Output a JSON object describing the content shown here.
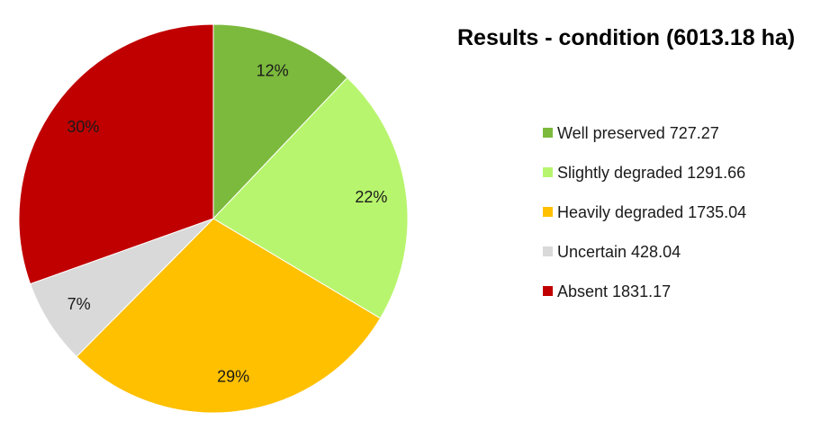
{
  "chart_data": {
    "type": "pie",
    "title": "Results - condition (6013.18 ha)",
    "start_angle_deg": 0,
    "direction": "clockwise",
    "legend_position": "right",
    "slices": [
      {
        "label": "Well preserved",
        "value": 727.27,
        "percent_label": "12%",
        "legend_label": "Well preserved 727.27",
        "color": "#7cba3d"
      },
      {
        "label": "Slightly degraded",
        "value": 1291.66,
        "percent_label": "22%",
        "legend_label": "Slightly degraded 1291.66",
        "color": "#b8f56e"
      },
      {
        "label": "Heavily degraded",
        "value": 1735.04,
        "percent_label": "29%",
        "legend_label": "Heavily degraded 1735.04",
        "color": "#ffc000"
      },
      {
        "label": "Uncertain",
        "value": 428.04,
        "percent_label": "7%",
        "legend_label": "Uncertain 428.04",
        "color": "#d9d9d9"
      },
      {
        "label": "Absent",
        "value": 1831.17,
        "percent_label": "30%",
        "legend_label": "Absent 1831.17",
        "color": "#c00000"
      }
    ]
  }
}
